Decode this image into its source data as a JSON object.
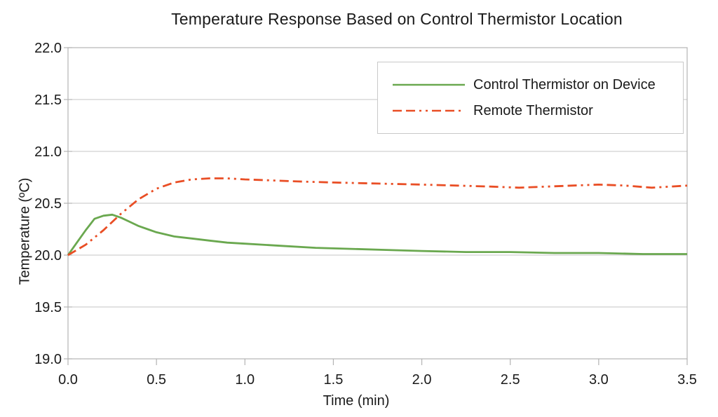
{
  "chart_data": {
    "type": "line",
    "title": "Temperature Response Based on Control Thermistor Location",
    "xlabel": "Time (min)",
    "ylabel": "Temperature (ºC)",
    "xlim": [
      0,
      3.5
    ],
    "ylim": [
      19.0,
      22.0
    ],
    "x_ticks": [
      0.0,
      0.5,
      1.0,
      1.5,
      2.0,
      2.5,
      3.0,
      3.5
    ],
    "y_ticks": [
      19.0,
      19.5,
      20.0,
      20.5,
      21.0,
      21.5,
      22.0
    ],
    "grid": "horizontal-only",
    "legend_position": "top-right-inside",
    "axis_color": "#b3b3b3",
    "grid_color": "#c6c6c6",
    "series": [
      {
        "name": "Control Thermistor on Device",
        "color": "#6aa84f",
        "style": "solid",
        "x": [
          0,
          0.05,
          0.1,
          0.15,
          0.2,
          0.25,
          0.3,
          0.35,
          0.4,
          0.45,
          0.5,
          0.6,
          0.7,
          0.8,
          0.9,
          1.0,
          1.2,
          1.4,
          1.6,
          1.8,
          2.0,
          2.25,
          2.5,
          2.75,
          3.0,
          3.25,
          3.5
        ],
        "y": [
          20.0,
          20.12,
          20.24,
          20.35,
          20.38,
          20.39,
          20.36,
          20.32,
          20.28,
          20.25,
          20.22,
          20.18,
          20.16,
          20.14,
          20.12,
          20.11,
          20.09,
          20.07,
          20.06,
          20.05,
          20.04,
          20.03,
          20.03,
          20.02,
          20.02,
          20.01,
          20.01
        ]
      },
      {
        "name": "Remote Thermistor",
        "color": "#e94e25",
        "style": "dash-dash-dot-dot",
        "x": [
          0,
          0.1,
          0.2,
          0.3,
          0.4,
          0.5,
          0.6,
          0.7,
          0.8,
          0.9,
          1.0,
          1.15,
          1.3,
          1.5,
          1.75,
          2.0,
          2.2,
          2.4,
          2.55,
          2.7,
          2.85,
          3.0,
          3.15,
          3.3,
          3.4,
          3.5
        ],
        "y": [
          20.0,
          20.1,
          20.24,
          20.4,
          20.54,
          20.64,
          20.7,
          20.73,
          20.74,
          20.74,
          20.73,
          20.72,
          20.71,
          20.7,
          20.69,
          20.68,
          20.67,
          20.66,
          20.65,
          20.66,
          20.67,
          20.68,
          20.67,
          20.65,
          20.66,
          20.67
        ]
      }
    ]
  }
}
